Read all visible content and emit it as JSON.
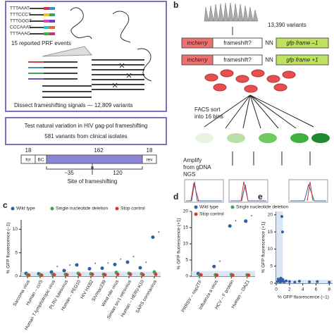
{
  "panel_a": {
    "prf_label": "15 reported PRF events",
    "dissect_label": "Dissect frameshifting signals — 12,809 variants",
    "sequences": [
      "TTTAAAT",
      "TTTCCCT",
      "TTTGGGT",
      "CCCAAAT",
      "TTTAAAC"
    ],
    "test_box": [
      "Test natural variation in HIV gag-pol frameshifting",
      "581 variants from clinical isolates"
    ],
    "construct": {
      "lengths": [
        "18",
        "162",
        "18"
      ],
      "parts": [
        "for",
        "BC",
        "rev"
      ],
      "sub_lengths": [
        "~35",
        "120"
      ],
      "site_label": "Site of frameshifting"
    }
  },
  "panel_b": {
    "letter": "b",
    "variants": "13,390 variants",
    "rows": [
      {
        "reporter": "mcherry",
        "middle": "frameshift?",
        "linker": "NN",
        "gfp": "gfp frame –1"
      },
      {
        "reporter": "mcherry",
        "middle": "frameshift?",
        "linker": "NN",
        "gfp": "gfp frame +1"
      }
    ],
    "facs": [
      "FACS sort",
      "into 16 bins"
    ],
    "amplify": [
      "Amplify",
      "from gDNA",
      "NGS"
    ]
  },
  "chart_data": [
    {
      "type": "dot",
      "letter": "c",
      "ylabel": "% GFP fluorescence (–1)",
      "categories": [
        "Sarcoma virus",
        "Human – ccr5",
        "Human T-lymphotropic virus",
        "PLRV luteovirus",
        "Human – PEG10",
        "HIV HXB2",
        "SIVmac239",
        "West nile virus",
        "Simian srv1 retrovirus",
        "Human – HERV-K10",
        "SARS coronavirus"
      ],
      "significance": [
        null,
        null,
        "*",
        "*",
        null,
        "*",
        "*",
        "*",
        "*",
        "*",
        "*"
      ],
      "series": [
        {
          "name": "Wild type",
          "color": "#2f5fa7",
          "values": [
            0.6,
            0.5,
            0.9,
            1.2,
            2.4,
            1.6,
            1.7,
            2.5,
            3.0,
            1.8,
            8.3
          ]
        },
        {
          "name": "Single nucleotide deletion",
          "color": "#3aa655",
          "values": [
            0.3,
            0.3,
            0.4,
            0.4,
            0.6,
            0.5,
            0.4,
            0.8,
            0.6,
            0.5,
            0.9
          ]
        },
        {
          "name": "Stop control",
          "color": "#d43c2f",
          "values": [
            0.2,
            0.2,
            0.3,
            0.3,
            0.3,
            0.4,
            0.3,
            0.4,
            0.4,
            0.3,
            0.4
          ]
        }
      ],
      "ylim": [
        0,
        12
      ],
      "yticks": [
        0,
        5,
        10
      ]
    },
    {
      "type": "dot",
      "letter": "d",
      "ylabel": "% GFP fluorescence (+1)",
      "categories": [
        "PRRSV – nsp2TF",
        "Influenza a virus",
        "HCV – F protein",
        "Human – OAZ1"
      ],
      "significance": [
        null,
        "*",
        "*",
        "*"
      ],
      "series": [
        {
          "name": "Wild type",
          "color": "#2f5fa7",
          "values": [
            0.8,
            3.0,
            15.5,
            17.0
          ]
        },
        {
          "name": "Single nucleotide deletion",
          "color": "#3aa655",
          "values": [
            0.3,
            0.4,
            0.5,
            0.4
          ]
        },
        {
          "name": "Stop control",
          "color": "#d43c2f",
          "values": [
            0.4,
            0.3,
            0.3,
            0.3
          ]
        }
      ],
      "ylim": [
        0,
        20
      ],
      "yticks": [
        0,
        5,
        10,
        15,
        20
      ]
    },
    {
      "type": "scatter",
      "letter": "e",
      "xlabel": "% GFP fluorescence (–1)",
      "ylabel": "% GFP fluorescence (+1)",
      "color": "#2f5fa7",
      "x": [
        0.2,
        0.3,
        0.5,
        0.6,
        0.7,
        0.8,
        0.9,
        1.0,
        1.2,
        1.5,
        2.0,
        2.8,
        3.5,
        5.0,
        6.2,
        8.0,
        0.85,
        0.95
      ],
      "values": [
        0.5,
        1.2,
        0.8,
        0.3,
        1.5,
        0.9,
        0.6,
        1.1,
        0.4,
        0.7,
        0.5,
        0.3,
        0.6,
        0.4,
        0.5,
        0.3,
        19.5,
        15.0
      ],
      "xlim": [
        0,
        8.5
      ],
      "xticks": [
        0,
        2,
        4,
        6,
        8
      ],
      "ylim": [
        0,
        21
      ],
      "yticks": [
        0,
        5,
        10,
        15,
        20
      ]
    }
  ]
}
